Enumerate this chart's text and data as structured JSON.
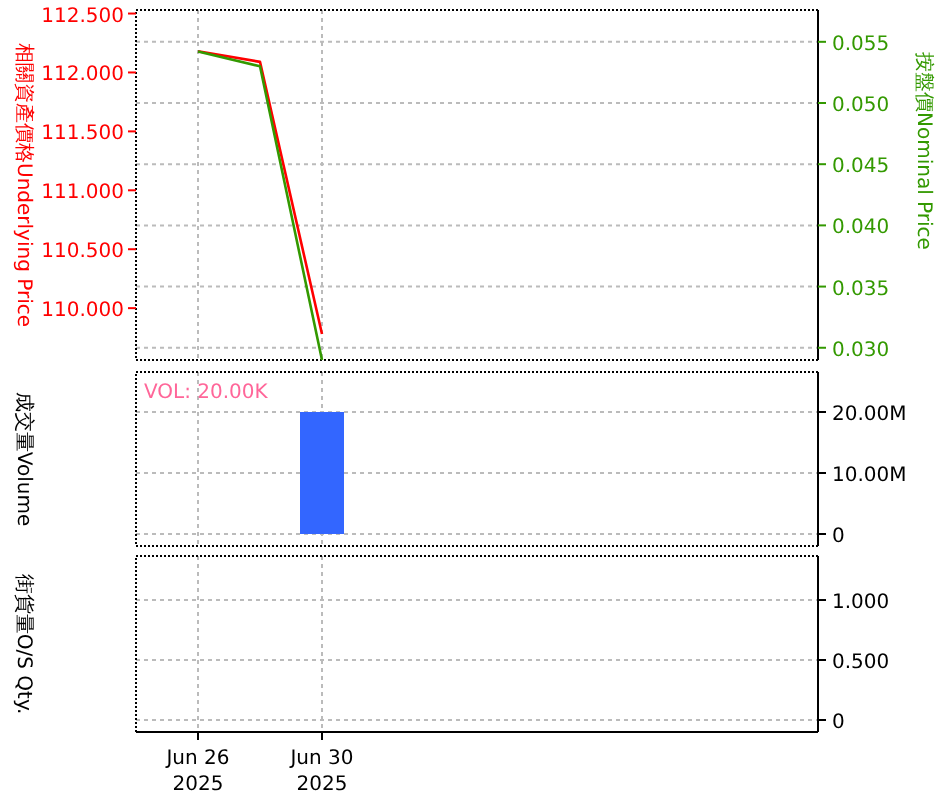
{
  "chart_data": [
    {
      "type": "line",
      "x": [
        "2025-06-26",
        "2025-06-28",
        "2025-06-30"
      ],
      "series": [
        {
          "color": "#ff0000",
          "values": [
            112.18,
            112.09,
            109.78
          ]
        },
        {
          "color": "#339900",
          "axis": "y2",
          "values": [
            0.0542,
            0.053,
            0.029
          ]
        }
      ],
      "ylabel": "相關資產價格Underlying Price",
      "y2label": "按盤價Nominal Price",
      "xlim": [
        "2025-06-24",
        "2025-07-16"
      ],
      "xticks": [
        {
          "value": "2025-06-26",
          "label": null
        },
        {
          "value": "2025-06-30",
          "label": null
        }
      ],
      "ylim": [
        109.56,
        112.53
      ],
      "yticks": [
        {
          "value": 110,
          "label": "110.000"
        },
        {
          "value": 110.5,
          "label": "110.500"
        },
        {
          "value": 111,
          "label": "111.000"
        },
        {
          "value": 111.5,
          "label": "111.500"
        },
        {
          "value": 112,
          "label": "112.000"
        },
        {
          "value": 112.5,
          "label": "112.500"
        }
      ],
      "y2lim": [
        0.029,
        0.0576
      ],
      "y2ticks": [
        {
          "value": 0.03,
          "label": "0.030"
        },
        {
          "value": 0.035,
          "label": "0.035"
        },
        {
          "value": 0.04,
          "label": "0.040"
        },
        {
          "value": 0.045,
          "label": "0.045"
        },
        {
          "value": 0.05,
          "label": "0.050"
        },
        {
          "value": 0.055,
          "label": "0.055"
        }
      ],
      "grid": true,
      "tick_labels": "y"
    },
    {
      "type": "bar",
      "x": [
        "2025-06-30"
      ],
      "values": [
        20000000
      ],
      "color": "#3366ff",
      "ylabel": "成交量Volume",
      "annotations": [
        "VOL: 20.00K"
      ],
      "xlim": [
        "2025-06-24",
        "2025-07-16"
      ],
      "xticks": [
        {
          "value": "2025-06-26",
          "label": null
        },
        {
          "value": "2025-06-30",
          "label": null
        }
      ],
      "ylim": [
        -1970000,
        26560000
      ],
      "yticks": [
        0,
        {
          "value": 10000000,
          "label": "10.00M"
        },
        {
          "value": 20000000,
          "label": "20.00M"
        }
      ],
      "grid": true,
      "tick_labels": "y"
    },
    {
      "type": "line",
      "ylabel": "街貨量O/S Qty.",
      "xlim": [
        "2025-06-24",
        "2025-07-16"
      ],
      "xticks": [
        {
          "value": "2025-06-26",
          "label": "Jun 26\n2025"
        },
        {
          "value": "2025-06-30",
          "label": "Jun 30\n2025"
        }
      ],
      "ylim": [
        -0.1,
        1.367
      ],
      "yticks": [
        0,
        {
          "value": 0.5,
          "label": "0.500"
        },
        {
          "value": 1,
          "label": "1.000"
        }
      ],
      "grid": true
    }
  ]
}
